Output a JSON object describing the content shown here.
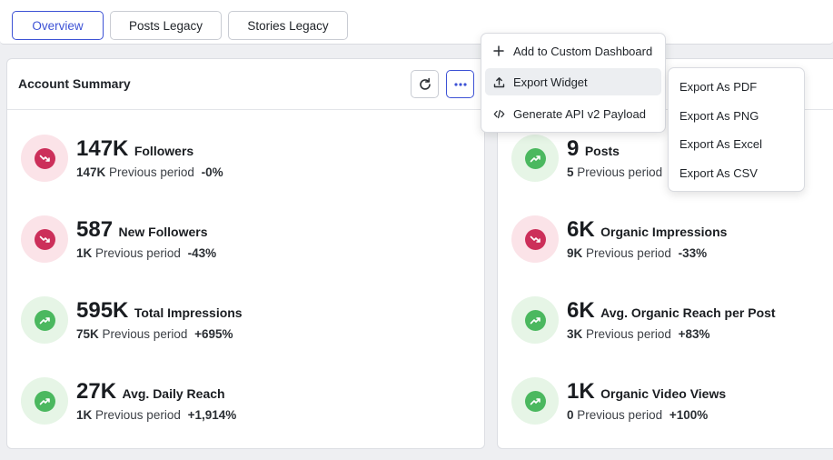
{
  "tabs": [
    {
      "label": "Overview",
      "active": true
    },
    {
      "label": "Posts Legacy",
      "active": false
    },
    {
      "label": "Stories Legacy",
      "active": false
    }
  ],
  "left_card": {
    "title": "Account Summary",
    "metrics": [
      {
        "value": "147K",
        "label": "Followers",
        "prev": "147K",
        "prev_text": "Previous period",
        "change": "-0%",
        "trend": "down"
      },
      {
        "value": "587",
        "label": "New Followers",
        "prev": "1K",
        "prev_text": "Previous period",
        "change": "-43%",
        "trend": "down"
      },
      {
        "value": "595K",
        "label": "Total Impressions",
        "prev": "75K",
        "prev_text": "Previous period",
        "change": "+695%",
        "trend": "up"
      },
      {
        "value": "27K",
        "label": "Avg. Daily Reach",
        "prev": "1K",
        "prev_text": "Previous period",
        "change": "+1,914%",
        "trend": "up"
      }
    ]
  },
  "right_card": {
    "metrics": [
      {
        "value": "9",
        "label": "Posts",
        "prev": "5",
        "prev_text": "Previous period",
        "change": "",
        "trend": "up"
      },
      {
        "value": "6K",
        "label": "Organic Impressions",
        "prev": "9K",
        "prev_text": "Previous period",
        "change": "-33%",
        "trend": "down"
      },
      {
        "value": "6K",
        "label": "Avg. Organic Reach per Post",
        "prev": "3K",
        "prev_text": "Previous period",
        "change": "+83%",
        "trend": "up"
      },
      {
        "value": "1K",
        "label": "Organic Video Views",
        "prev": "0",
        "prev_text": "Previous period",
        "change": "+100%",
        "trend": "up"
      }
    ]
  },
  "menu": {
    "items": [
      {
        "label": "Add to Custom Dashboard",
        "icon": "plus-icon"
      },
      {
        "label": "Export Widget",
        "icon": "upload-icon"
      },
      {
        "label": "Generate API v2 Payload",
        "icon": "code-icon"
      }
    ],
    "export_submenu": [
      "Export As PDF",
      "Export As PNG",
      "Export As Excel",
      "Export As CSV"
    ]
  },
  "colors": {
    "accent": "#3d52d5",
    "trend_down": "#cc2f5a",
    "trend_down_bg": "#fbe3e8",
    "trend_up": "#4bb85f",
    "trend_up_bg": "#e6f5e6"
  }
}
